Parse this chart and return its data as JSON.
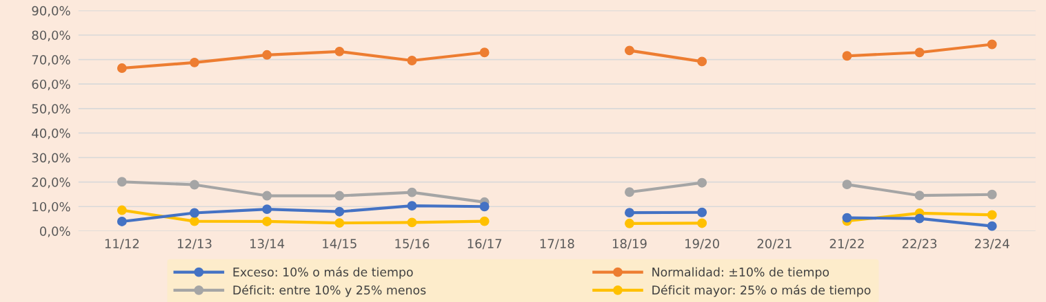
{
  "chart_data": {
    "type": "line",
    "categories": [
      "11/12",
      "12/13",
      "13/14",
      "14/15",
      "15/16",
      "16/17",
      "17/18",
      "18/19",
      "19/20",
      "20/21",
      "21/22",
      "22/23",
      "23/24"
    ],
    "series": [
      {
        "name": "Exceso: 10% o más de tiempo",
        "color": "#4472c4",
        "values": [
          3.9,
          7.4,
          8.9,
          7.9,
          10.3,
          10.0,
          null,
          7.5,
          7.6,
          null,
          5.4,
          5.1,
          2.0
        ]
      },
      {
        "name": "Normalidad: ±10% de tiempo",
        "color": "#ed7d31",
        "values": [
          66.5,
          68.8,
          71.9,
          73.3,
          69.6,
          72.9,
          null,
          73.7,
          69.2,
          null,
          71.5,
          72.9,
          76.2
        ]
      },
      {
        "name": "Déficit: entre 10% y 25% menos",
        "color": "#a5a5a5",
        "values": [
          20.1,
          18.9,
          14.4,
          14.4,
          15.8,
          11.8,
          null,
          15.9,
          19.7,
          null,
          19.0,
          14.5,
          14.9
        ]
      },
      {
        "name": "Déficit mayor: 25% o más de tiempo",
        "color": "#ffc000",
        "values": [
          8.5,
          4.0,
          3.9,
          3.3,
          3.5,
          4.0,
          null,
          3.1,
          3.2,
          null,
          4.1,
          7.3,
          6.6
        ]
      }
    ],
    "ylim": [
      0,
      90
    ],
    "yticks": [
      {
        "value": 0,
        "label": "0,0%"
      },
      {
        "value": 10,
        "label": "10,0%"
      },
      {
        "value": 20,
        "label": "20,0%"
      },
      {
        "value": 30,
        "label": "30,0%"
      },
      {
        "value": 40,
        "label": "40,0%"
      },
      {
        "value": 50,
        "label": "50,0%"
      },
      {
        "value": 60,
        "label": "60,0%"
      },
      {
        "value": 70,
        "label": "70,0%"
      },
      {
        "value": 80,
        "label": "80,0%"
      },
      {
        "value": 90,
        "label": "90,0%"
      }
    ],
    "grid": "y",
    "legend": "bottom",
    "marker": "circle",
    "line_style": "solid"
  }
}
